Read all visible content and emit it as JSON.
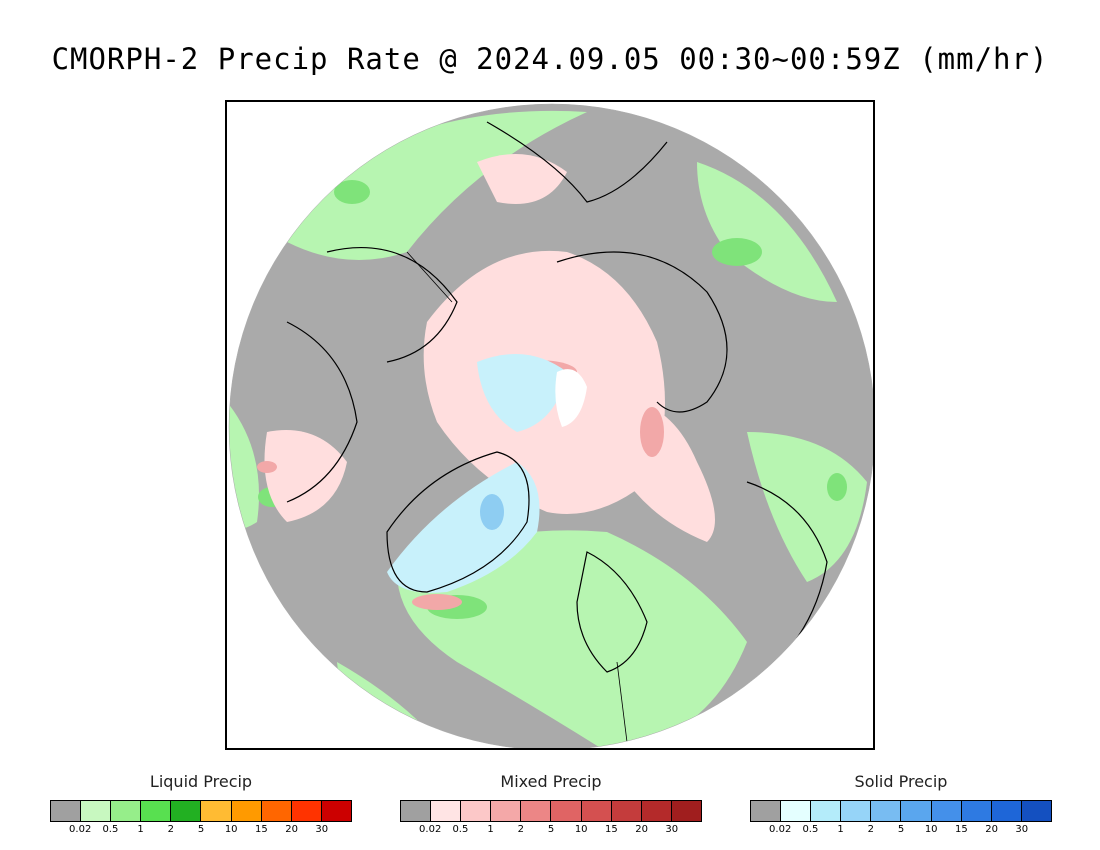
{
  "title": "CMORPH-2 Precip Rate @ 2024.09.05 00:30~00:59Z (mm/hr)",
  "map": {
    "projection": "polar-stereographic",
    "region": "northern-hemisphere",
    "colors": {
      "no_precip": "#aaaaaa",
      "liquid_light": "#b7f5b1",
      "liquid_mid": "#7fe37a",
      "mixed_light": "#ffdede",
      "mixed_mid": "#f2a8a8",
      "solid_light": "#c8f1fb",
      "solid_mid": "#8ecdf2",
      "coast": "#000000"
    }
  },
  "legends": [
    {
      "title": "Liquid Precip",
      "ticks": [
        "0.02",
        "0.5",
        "1",
        "2",
        "5",
        "10",
        "15",
        "20",
        "30"
      ],
      "colors": [
        "#a0a0a0",
        "#c8f8c0",
        "#96ee8a",
        "#58e050",
        "#22b022",
        "#ffbb33",
        "#ff9a00",
        "#ff6600",
        "#ff3300",
        "#cc0000"
      ]
    },
    {
      "title": "Mixed Precip",
      "ticks": [
        "0.02",
        "0.5",
        "1",
        "2",
        "5",
        "10",
        "15",
        "20",
        "30"
      ],
      "colors": [
        "#a0a0a0",
        "#ffe4e4",
        "#fcc8c8",
        "#f4a8a8",
        "#ec8686",
        "#e06464",
        "#d45050",
        "#c43c3c",
        "#b42a2a",
        "#a01e1e"
      ]
    },
    {
      "title": "Solid Precip",
      "ticks": [
        "0.02",
        "0.5",
        "1",
        "2",
        "5",
        "10",
        "15",
        "20",
        "30"
      ],
      "colors": [
        "#a0a0a0",
        "#e4ffff",
        "#b4ecfa",
        "#96d4f8",
        "#78bcf2",
        "#5aa6ee",
        "#4490ea",
        "#2e7ae2",
        "#1e66d8",
        "#1450c0"
      ]
    }
  ]
}
